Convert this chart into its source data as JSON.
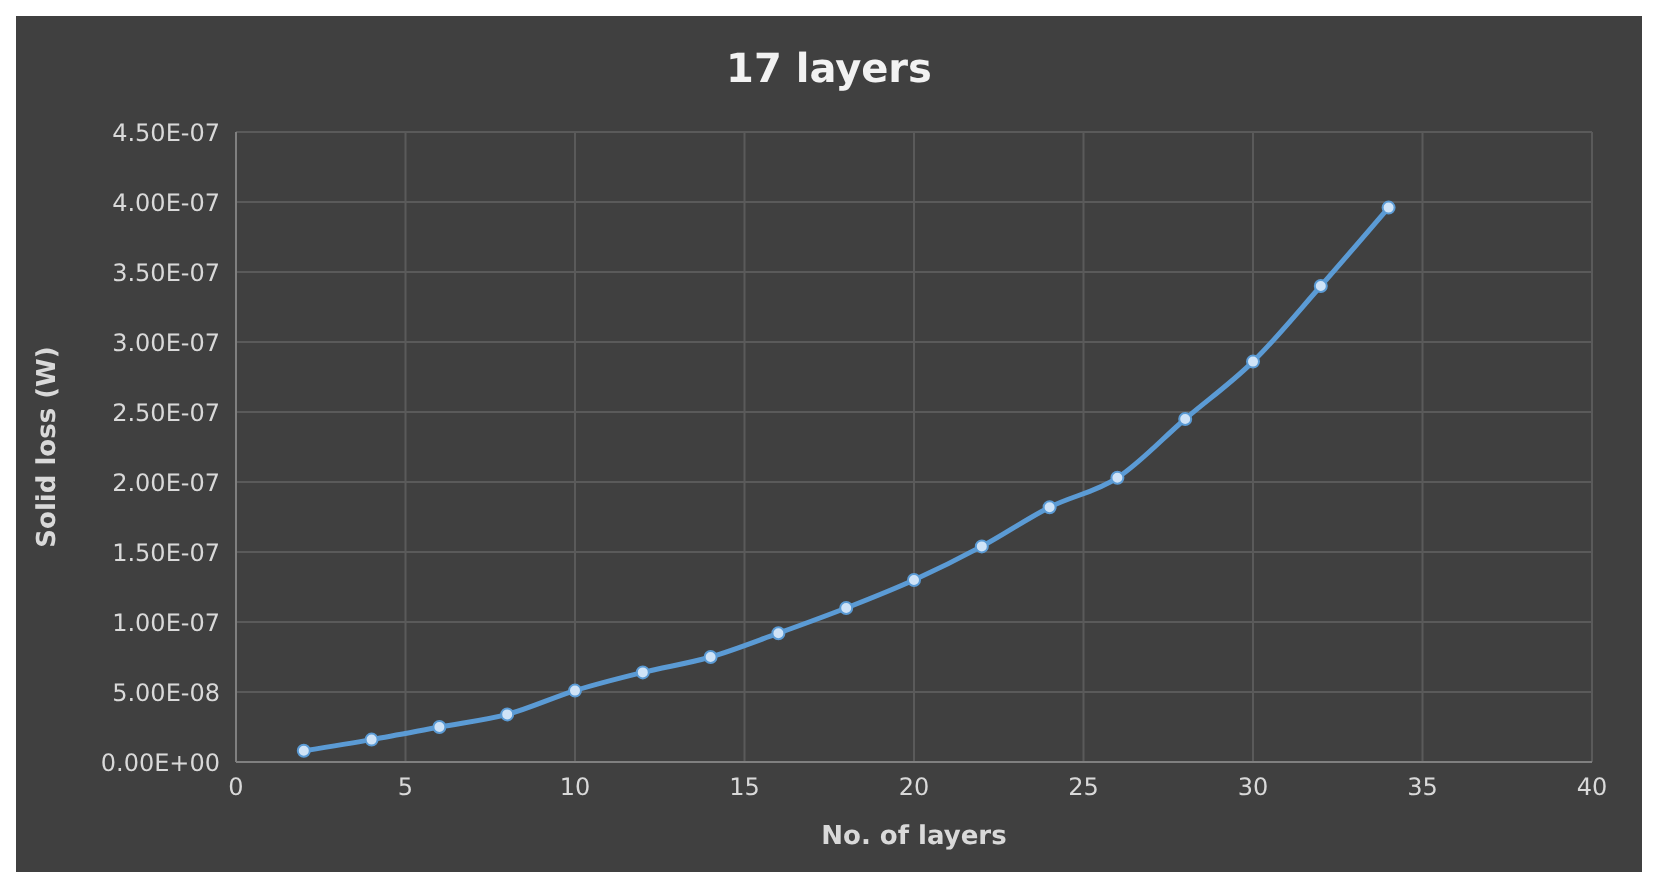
{
  "chart_data": {
    "type": "line",
    "title": "17 layers",
    "xlabel": "No. of layers",
    "ylabel": "Solid loss (W)",
    "x": [
      2,
      4,
      6,
      8,
      10,
      12,
      14,
      16,
      18,
      20,
      22,
      24,
      26,
      28,
      30,
      32,
      34
    ],
    "series": [
      {
        "color": "#5b9bd5",
        "values": [
          8e-09,
          1.6e-08,
          2.5e-08,
          3.4e-08,
          5.1e-08,
          6.4e-08,
          7.5e-08,
          9.2e-08,
          1.1e-07,
          1.3e-07,
          1.54e-07,
          1.82e-07,
          2.03e-07,
          2.45e-07,
          2.86e-07,
          3.4e-07,
          3.96e-07
        ]
      }
    ],
    "xlim": [
      0,
      40
    ],
    "xticks": [
      0,
      5,
      10,
      15,
      20,
      25,
      30,
      35,
      40
    ],
    "ylim": [
      0,
      4.5e-07
    ],
    "yticks": [
      {
        "value": 0,
        "label": "0.00E+00"
      },
      {
        "value": 5e-08,
        "label": "5.00E-08"
      },
      {
        "value": 1e-07,
        "label": "1.00E-07"
      },
      {
        "value": 1.5e-07,
        "label": "1.50E-07"
      },
      {
        "value": 2e-07,
        "label": "2.00E-07"
      },
      {
        "value": 2.5e-07,
        "label": "2.50E-07"
      },
      {
        "value": 3e-07,
        "label": "3.00E-07"
      },
      {
        "value": 3.5e-07,
        "label": "3.50E-07"
      },
      {
        "value": 4e-07,
        "label": "4.00E-07"
      },
      {
        "value": 4.5e-07,
        "label": "4.50E-07"
      }
    ],
    "grid": true,
    "marker": "circle",
    "line_style": "solid"
  }
}
